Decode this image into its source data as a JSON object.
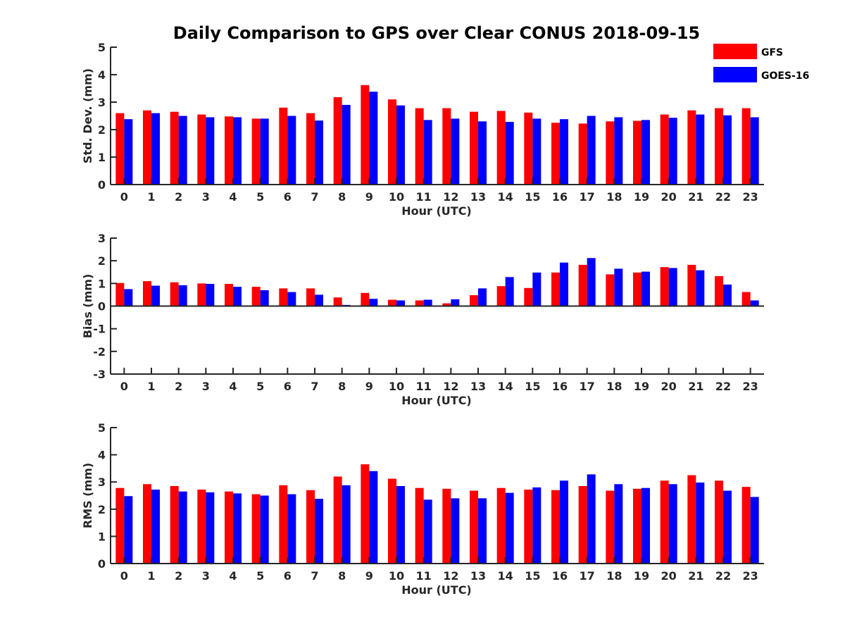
{
  "chart_data": {
    "title": "Daily Comparison to GPS over Clear CONUS 2018-09-15",
    "colors": {
      "GFS": "#ff0000",
      "GOES-16": "#0000ff",
      "axis": "#262626"
    },
    "legend": {
      "placement": "top-right",
      "entries": [
        "GFS",
        "GOES-16"
      ]
    },
    "panels": [
      {
        "type": "bar",
        "xlabel": "Hour (UTC)",
        "ylabel": "Std. Dev. (mm)",
        "ylim": [
          0,
          5
        ],
        "yticks": [
          0,
          1,
          2,
          3,
          4,
          5
        ],
        "categories": [
          "0",
          "1",
          "2",
          "3",
          "4",
          "5",
          "6",
          "7",
          "8",
          "9",
          "10",
          "11",
          "12",
          "13",
          "14",
          "15",
          "16",
          "17",
          "18",
          "19",
          "20",
          "21",
          "22",
          "23"
        ],
        "series": [
          {
            "name": "GFS",
            "values": [
              2.6,
              2.7,
              2.65,
              2.55,
              2.48,
              2.4,
              2.8,
              2.6,
              3.18,
              3.62,
              3.1,
              2.78,
              2.78,
              2.65,
              2.68,
              2.62,
              2.25,
              2.22,
              2.3,
              2.32,
              2.55,
              2.7,
              2.78,
              2.78
            ]
          },
          {
            "name": "GOES-16",
            "values": [
              2.38,
              2.6,
              2.5,
              2.45,
              2.45,
              2.4,
              2.5,
              2.33,
              2.9,
              3.38,
              2.88,
              2.35,
              2.4,
              2.3,
              2.28,
              2.4,
              2.38,
              2.5,
              2.45,
              2.35,
              2.43,
              2.55,
              2.52,
              2.45
            ]
          }
        ]
      },
      {
        "type": "bar",
        "xlabel": "Hour (UTC)",
        "ylabel": "Bias (mm)",
        "ylim": [
          -3,
          3
        ],
        "yticks": [
          -3,
          -2,
          -1,
          0,
          1,
          2,
          3
        ],
        "categories": [
          "0",
          "1",
          "2",
          "3",
          "4",
          "5",
          "6",
          "7",
          "8",
          "9",
          "10",
          "11",
          "12",
          "13",
          "14",
          "15",
          "16",
          "17",
          "18",
          "19",
          "20",
          "21",
          "22",
          "23"
        ],
        "series": [
          {
            "name": "GFS",
            "values": [
              1.02,
              1.1,
              1.05,
              1.0,
              0.98,
              0.85,
              0.78,
              0.78,
              0.38,
              0.58,
              0.28,
              0.25,
              0.12,
              0.48,
              0.88,
              0.8,
              1.48,
              1.82,
              1.4,
              1.48,
              1.72,
              1.82,
              1.32,
              0.62
            ]
          },
          {
            "name": "GOES-16",
            "values": [
              0.75,
              0.9,
              0.92,
              0.98,
              0.85,
              0.7,
              0.62,
              0.5,
              0.05,
              0.32,
              0.25,
              0.28,
              0.3,
              0.78,
              1.28,
              1.48,
              1.92,
              2.12,
              1.65,
              1.52,
              1.68,
              1.58,
              0.95,
              0.25
            ]
          }
        ]
      },
      {
        "type": "bar",
        "xlabel": "Hour (UTC)",
        "ylabel": "RMS (mm)",
        "ylim": [
          0,
          5
        ],
        "yticks": [
          0,
          1,
          2,
          3,
          4,
          5
        ],
        "categories": [
          "0",
          "1",
          "2",
          "3",
          "4",
          "5",
          "6",
          "7",
          "8",
          "9",
          "10",
          "11",
          "12",
          "13",
          "14",
          "15",
          "16",
          "17",
          "18",
          "19",
          "20",
          "21",
          "22",
          "23"
        ],
        "series": [
          {
            "name": "GFS",
            "values": [
              2.78,
              2.92,
              2.85,
              2.72,
              2.65,
              2.55,
              2.88,
              2.7,
              3.2,
              3.65,
              3.12,
              2.78,
              2.75,
              2.68,
              2.78,
              2.72,
              2.7,
              2.85,
              2.68,
              2.75,
              3.05,
              3.25,
              3.05,
              2.82
            ]
          },
          {
            "name": "GOES-16",
            "values": [
              2.48,
              2.72,
              2.65,
              2.62,
              2.58,
              2.5,
              2.55,
              2.38,
              2.88,
              3.4,
              2.85,
              2.35,
              2.4,
              2.4,
              2.6,
              2.8,
              3.05,
              3.28,
              2.92,
              2.78,
              2.92,
              2.98,
              2.68,
              2.45
            ]
          }
        ]
      }
    ]
  }
}
